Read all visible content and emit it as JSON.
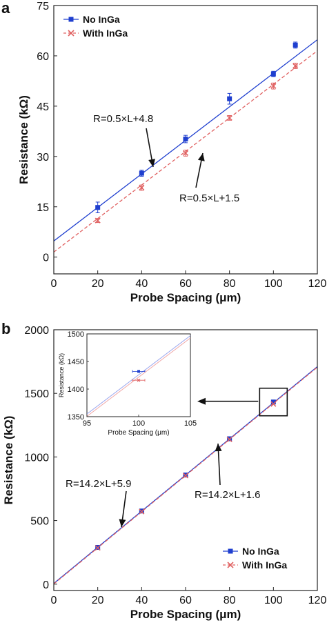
{
  "chart_data": [
    {
      "type": "scatter",
      "panel_label": "a",
      "xlabel": "Probe Spacing (μm)",
      "ylabel": "Resistance (kΩ)",
      "xlim": [
        0,
        120
      ],
      "ylim": [
        -5,
        75
      ],
      "xticks": [
        0,
        20,
        40,
        60,
        80,
        100,
        120
      ],
      "yticks": [
        0,
        15,
        30,
        45,
        60,
        75
      ],
      "legend_position": "top-left",
      "grid": false,
      "series": [
        {
          "name": "No InGa",
          "color": "#1f3fcf",
          "marker": "square",
          "x": [
            20,
            40,
            60,
            80,
            100,
            110
          ],
          "y": [
            14.8,
            25.0,
            35.2,
            47.2,
            54.6,
            63.2
          ],
          "yerr": [
            1.6,
            0.9,
            1.1,
            1.6,
            0.8,
            0.9
          ],
          "fit": {
            "slope": 0.5,
            "intercept": 4.8
          }
        },
        {
          "name": "With InGa",
          "color": "#e06060",
          "marker": "x",
          "x": [
            20,
            40,
            60,
            80,
            100,
            110
          ],
          "y": [
            10.9,
            20.7,
            31.0,
            41.5,
            51.0,
            57.0
          ],
          "yerr": [
            0.6,
            0.8,
            0.9,
            0.7,
            0.9,
            0.8
          ],
          "fit": {
            "slope": 0.5,
            "intercept": 1.5
          }
        }
      ],
      "annotations": [
        {
          "text": "R=0.5×L+4.8"
        },
        {
          "text": "R=0.5×L+1.5"
        }
      ]
    },
    {
      "type": "scatter",
      "panel_label": "b",
      "xlabel": "Probe Spacing (μm)",
      "ylabel": "Resistance (kΩ)",
      "xlim": [
        0,
        120
      ],
      "ylim": [
        -50,
        2000
      ],
      "xticks": [
        0,
        20,
        40,
        60,
        80,
        100,
        120
      ],
      "yticks": [
        0,
        500,
        1000,
        1500,
        2000
      ],
      "legend_position": "bottom-right",
      "grid": false,
      "series": [
        {
          "name": "No InGa",
          "color": "#1f3fcf",
          "marker": "square",
          "x": [
            20,
            40,
            60,
            80,
            100
          ],
          "y": [
            289,
            575,
            858,
            1143,
            1432
          ],
          "fit": {
            "slope": 14.2,
            "intercept": 5.9
          }
        },
        {
          "name": "With InGa",
          "color": "#e06060",
          "marker": "x",
          "x": [
            20,
            40,
            60,
            80,
            100
          ],
          "y": [
            285,
            570,
            853,
            1138,
            1416
          ],
          "fit": {
            "slope": 14.2,
            "intercept": 1.6
          }
        }
      ],
      "annotations": [
        {
          "text": "R=14.2×L+5.9"
        },
        {
          "text": "R=14.2×L+1.6"
        }
      ],
      "inset": {
        "xlabel": "Probe Spacing (μm)",
        "ylabel": "Resistance (kΩ)",
        "xlim": [
          95,
          105
        ],
        "ylim": [
          1350,
          1500
        ],
        "xticks": [
          95,
          100,
          105
        ],
        "yticks": [
          1350,
          1400,
          1450,
          1500
        ]
      }
    }
  ]
}
